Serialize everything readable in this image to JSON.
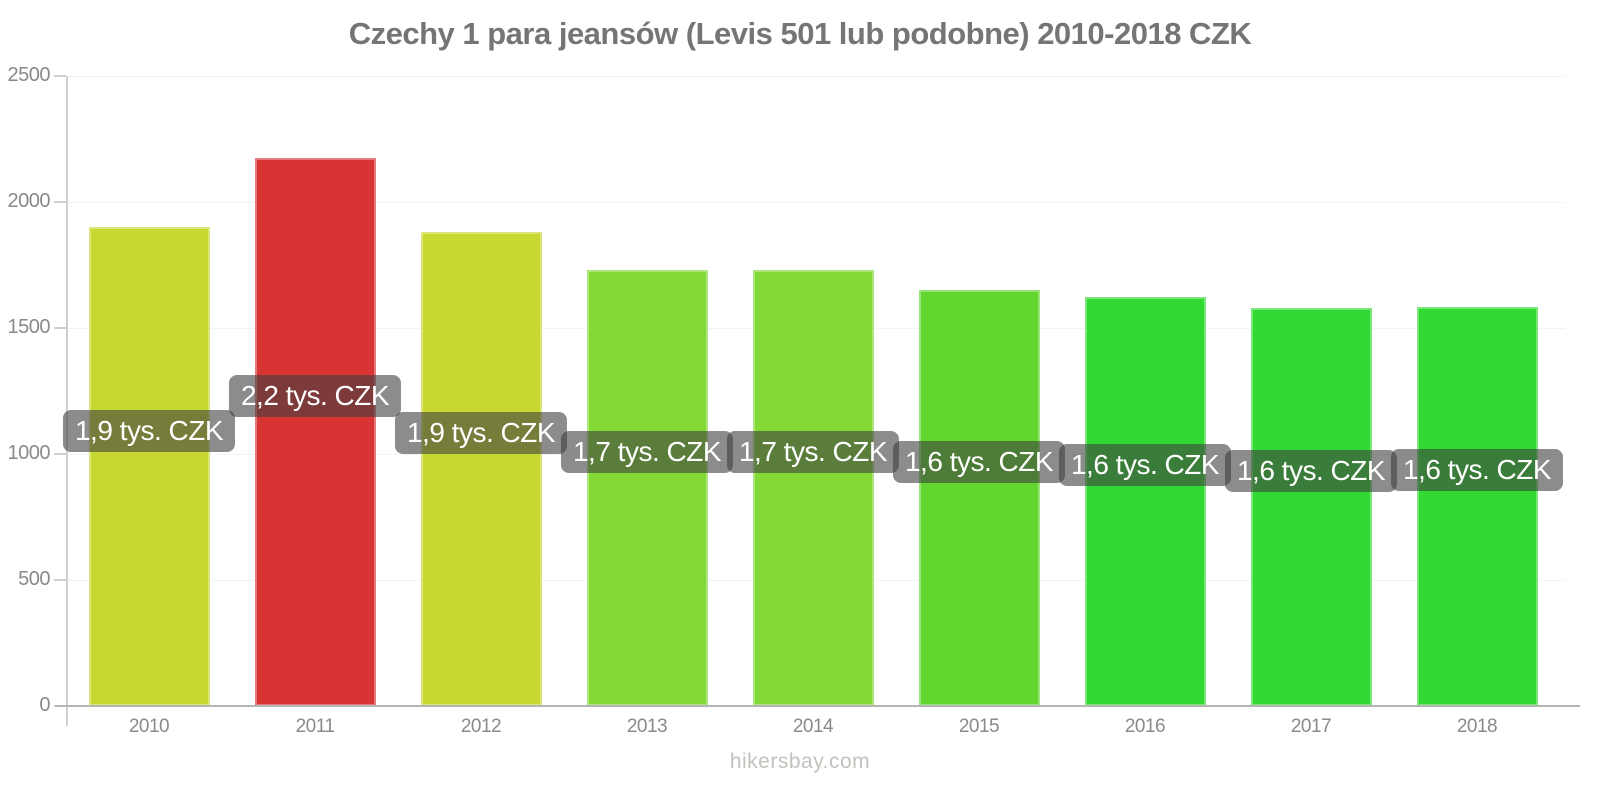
{
  "title": "Czechy 1 para jeansów (Levis 501 lub podobne) 2010-2018 CZK",
  "watermark": "hikersbay.com",
  "chart_data": {
    "type": "bar",
    "title": "Czechy 1 para jeansów (Levis 501 lub podobne) 2010-2018 CZK",
    "categories": [
      "2010",
      "2011",
      "2012",
      "2013",
      "2014",
      "2015",
      "2016",
      "2017",
      "2018"
    ],
    "values": [
      1900,
      2175,
      1880,
      1730,
      1730,
      1650,
      1625,
      1580,
      1585
    ],
    "bar_labels": [
      "1,9 tys. CZK",
      "2,2 tys. CZK",
      "1,9 tys. CZK",
      "1,7 tys. CZK",
      "1,7 tys. CZK",
      "1,6 tys. CZK",
      "1,6 tys. CZK",
      "1,6 tys. CZK",
      "1,6 tys. CZK"
    ],
    "bar_colors": [
      "#c8d832",
      "#d93434",
      "#c8d832",
      "#82d936",
      "#82d936",
      "#62d62e",
      "#33d933",
      "#33d933",
      "#33d933"
    ],
    "xlabel": "",
    "ylabel": "",
    "unit": "CZK",
    "ylim": [
      0,
      2500
    ],
    "yticks": [
      0,
      500,
      1000,
      1500,
      2000,
      2500
    ],
    "grid": true,
    "legend": false,
    "label_bg_color": "rgba(64,64,64,0.6)",
    "label_text_color": "#ffffff"
  }
}
